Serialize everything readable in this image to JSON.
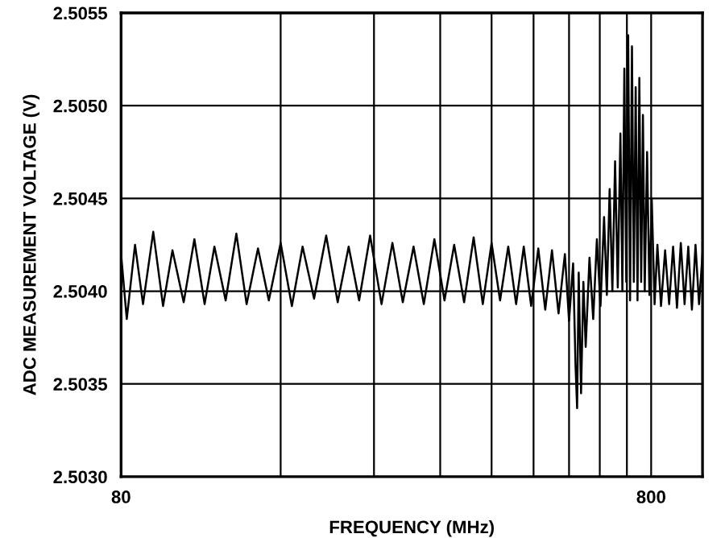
{
  "chart_data": {
    "type": "line",
    "xlabel": "FREQUENCY (MHz)",
    "ylabel": "ADC MEASUREMENT VOLTAGE (V)",
    "log": "x",
    "grid": true,
    "xlim": [
      80,
      1000
    ],
    "ylim": [
      2.503,
      2.5055
    ],
    "xticks": [
      80,
      {
        "value": 160,
        "label": null
      },
      {
        "value": 240,
        "label": null
      },
      {
        "value": 320,
        "label": null
      },
      {
        "value": 400,
        "label": null
      },
      {
        "value": 480,
        "label": null
      },
      {
        "value": 560,
        "label": null
      },
      {
        "value": 640,
        "label": null
      },
      {
        "value": 720,
        "label": null
      },
      800
    ],
    "yticks": [
      {
        "value": 2.503,
        "label": "2.5030"
      },
      {
        "value": 2.5035,
        "label": "2.5035"
      },
      {
        "value": 2.504,
        "label": "2.5040"
      },
      {
        "value": 2.5045,
        "label": "2.5045"
      },
      {
        "value": 2.505,
        "label": "2.5050"
      },
      {
        "value": 2.5055,
        "label": "2.5055"
      }
    ],
    "series": [
      {
        "color": "#000000",
        "x": [
          80,
          82,
          85,
          88,
          92,
          96,
          100,
          105,
          110,
          115,
          120,
          126,
          132,
          138,
          145,
          152,
          160,
          168,
          176,
          185,
          195,
          205,
          215,
          225,
          236,
          248,
          260,
          272,
          285,
          298,
          312,
          326,
          340,
          355,
          370,
          385,
          400,
          415,
          430,
          445,
          460,
          475,
          490,
          505,
          520,
          535,
          550,
          560,
          570,
          576,
          580,
          584,
          590,
          596,
          602,
          612,
          622,
          632,
          642,
          652,
          660,
          668,
          676,
          684,
          692,
          700,
          706,
          712,
          718,
          724,
          730,
          736,
          742,
          748,
          754,
          760,
          766,
          772,
          778,
          786,
          794,
          802,
          812,
          822,
          835,
          850,
          865,
          880,
          895,
          910,
          925,
          940,
          955,
          970,
          985,
          1000
        ],
        "values": [
          2.5042,
          2.50385,
          2.50425,
          2.50393,
          2.50432,
          2.50392,
          2.50422,
          2.50394,
          2.50428,
          2.50393,
          2.50424,
          2.50395,
          2.50431,
          2.50393,
          2.50423,
          2.50395,
          2.50426,
          2.50392,
          2.50424,
          2.50396,
          2.5043,
          2.50394,
          2.50424,
          2.50395,
          2.5043,
          2.50393,
          2.50426,
          2.50394,
          2.50424,
          2.50393,
          2.50428,
          2.50395,
          2.50425,
          2.50394,
          2.50429,
          2.50393,
          2.50426,
          2.50395,
          2.50424,
          2.50393,
          2.50424,
          2.50392,
          2.50423,
          2.5039,
          2.50422,
          2.50388,
          2.5042,
          2.50384,
          2.50415,
          2.5036,
          2.50337,
          2.5041,
          2.50345,
          2.50405,
          2.5037,
          2.50418,
          2.50385,
          2.50428,
          2.50392,
          2.5044,
          2.50398,
          2.50455,
          2.504,
          2.5047,
          2.50402,
          2.50485,
          2.504,
          2.5052,
          2.50405,
          2.50538,
          2.50395,
          2.50532,
          2.50405,
          2.5051,
          2.50395,
          2.50515,
          2.50405,
          2.50495,
          2.504,
          2.50475,
          2.50398,
          2.5045,
          2.50393,
          2.50425,
          2.50392,
          2.50422,
          2.50393,
          2.50424,
          2.50391,
          2.50426,
          2.50393,
          2.50424,
          2.5039,
          2.50425,
          2.50393,
          2.5042
        ]
      }
    ]
  }
}
